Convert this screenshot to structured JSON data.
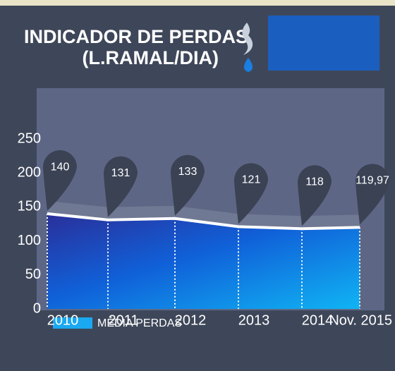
{
  "chart_data": {
    "type": "area",
    "title": "INDICADOR DE PERDAS",
    "subtitle": "(L.RAMAL/DIA)",
    "categories": [
      "2010",
      "2011",
      "2012",
      "2013",
      "2014",
      "Nov. 2015"
    ],
    "series": [
      {
        "name": "MÉDIA PERDAS",
        "color": "#1aa8f0",
        "values": [
          140,
          131,
          133,
          121,
          118,
          119.97
        ],
        "value_labels": [
          "140",
          "131",
          "133",
          "121",
          "118",
          "119,97"
        ]
      }
    ],
    "ylim": [
      0,
      250
    ],
    "yticks": [
      0,
      50,
      100,
      150,
      200,
      250
    ],
    "grid": false
  }
}
